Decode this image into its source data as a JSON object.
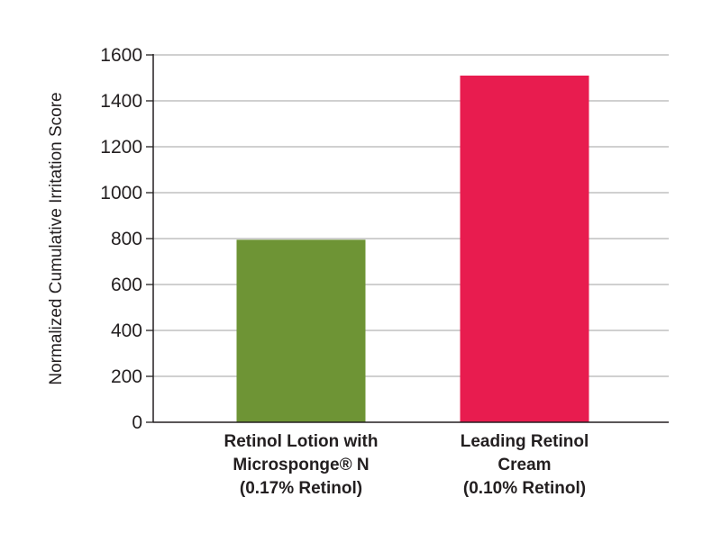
{
  "chart_data": {
    "type": "bar",
    "title": "",
    "xlabel": "",
    "ylabel": "Normalized Cumulative Irritation Score",
    "ylim": [
      0,
      1600
    ],
    "yticks": [
      0,
      200,
      400,
      600,
      800,
      1000,
      1200,
      1400,
      1600
    ],
    "grid": true,
    "categories": [
      "Retinol Lotion with Microsponge® N (0.17% Retinol)",
      "Leading Retinol Cream (0.10% Retinol)"
    ],
    "values": [
      795,
      1510
    ],
    "colors": [
      "#6e9435",
      "#e81c4f"
    ],
    "category_lines": [
      [
        "Retinol Lotion with",
        "Microsponge® N",
        "(0.17% Retinol)"
      ],
      [
        "Leading Retinol",
        "Cream",
        "(0.10% Retinol)"
      ]
    ]
  }
}
